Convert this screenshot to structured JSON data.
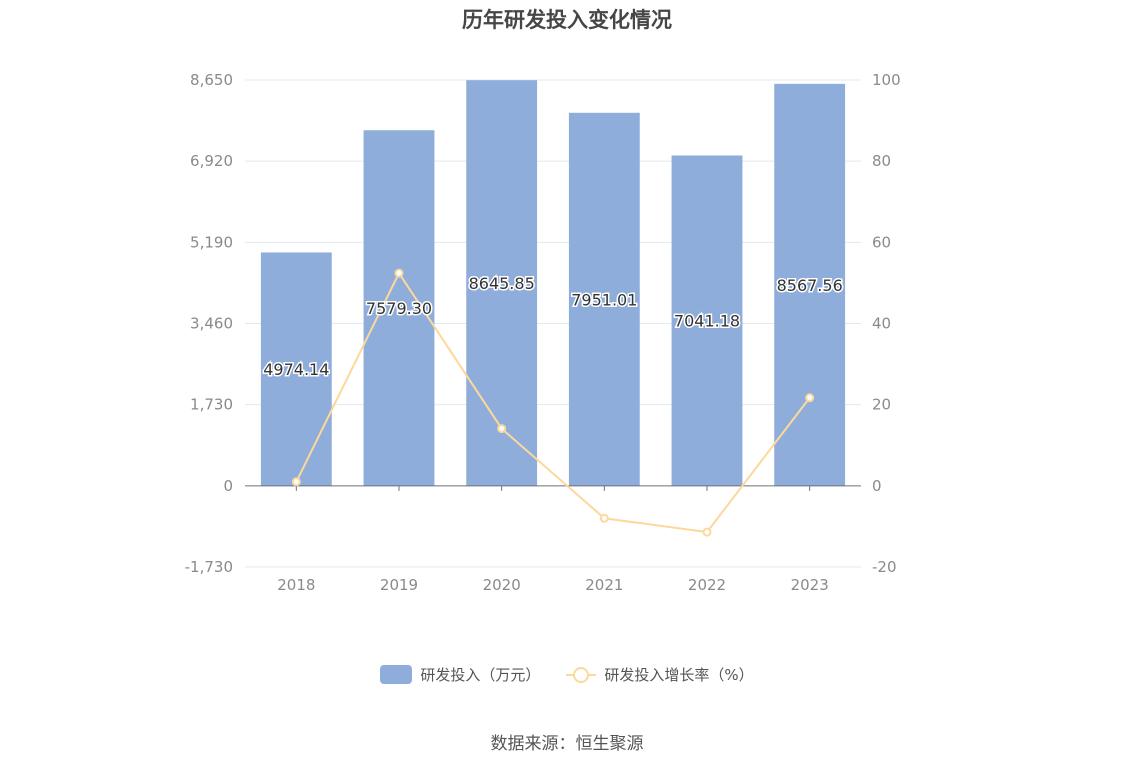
{
  "title": "历年研发投入变化情况",
  "source": "数据来源：恒生聚源",
  "colors": {
    "bar": "#8eaddb",
    "line": "#fcd89b",
    "grid": "#e3e8f3",
    "axis": "#6e7079"
  },
  "legend": {
    "bar_label": "研发投入（万元）",
    "line_label": "研发投入增长率（%）"
  },
  "chart_data": {
    "type": "bar",
    "categories": [
      "2018",
      "2019",
      "2020",
      "2021",
      "2022",
      "2023"
    ],
    "series": [
      {
        "name": "研发投入（万元）",
        "type": "bar",
        "axis": "left",
        "values": [
          4974.14,
          7579.3,
          8645.85,
          7951.01,
          7041.18,
          8567.56
        ],
        "labels": [
          "4974.14",
          "7579.30",
          "8645.85",
          "7951.01",
          "7041.18",
          "8567.56"
        ]
      },
      {
        "name": "研发投入增长率（%）",
        "type": "line",
        "axis": "right",
        "values": [
          1.0,
          52.4,
          14.1,
          -8.0,
          -11.4,
          21.7
        ]
      }
    ],
    "y_left": {
      "ticks": [
        -1730,
        0,
        1730,
        3460,
        5190,
        6920,
        8650
      ],
      "tick_labels": [
        "-1,730",
        "0",
        "1,730",
        "3,460",
        "5,190",
        "6,920",
        "8,650"
      ],
      "range": [
        -1730,
        8650
      ]
    },
    "y_right": {
      "ticks": [
        -20,
        0,
        20,
        40,
        60,
        80,
        100
      ],
      "tick_labels": [
        "-20",
        "0",
        "20",
        "40",
        "60",
        "80",
        "100"
      ],
      "range": [
        -20,
        100
      ]
    },
    "grid": true,
    "legend_position": "bottom"
  }
}
